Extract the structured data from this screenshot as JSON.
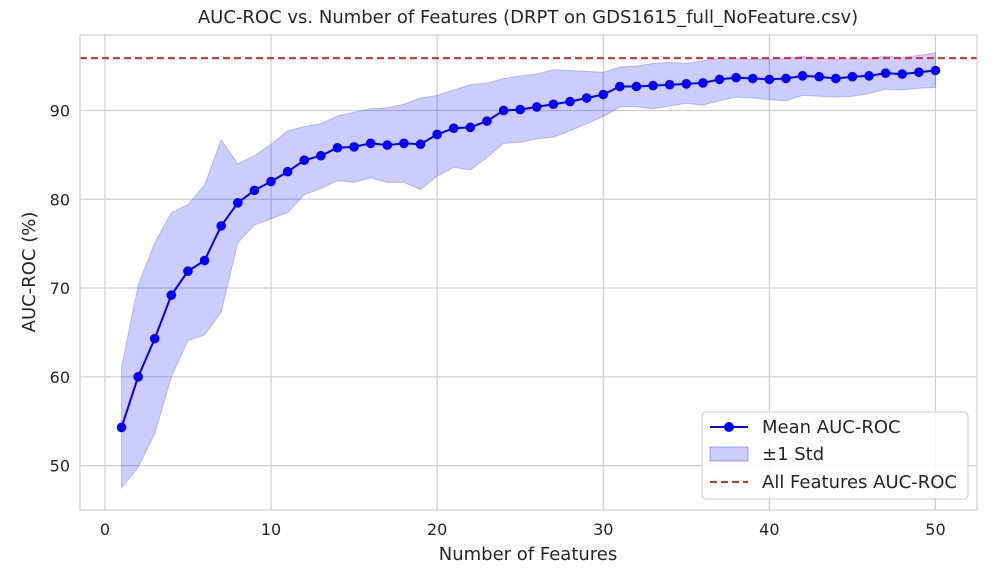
{
  "chart_data": {
    "type": "line",
    "title": "AUC-ROC vs. Number of Features (DRPT on GDS1615_full_NoFeature.csv)",
    "xlabel": "Number of Features",
    "ylabel": "AUC-ROC (%)",
    "xlim": [
      -1.5,
      52.5
    ],
    "ylim": [
      45,
      98.5
    ],
    "xticks": [
      0,
      10,
      20,
      30,
      40,
      50
    ],
    "yticks": [
      50,
      60,
      70,
      80,
      90
    ],
    "grid": true,
    "legend_position": "bottom-right",
    "colors": {
      "mean": "#0000ff",
      "band": "#0000ff",
      "reference": "#e8281f",
      "grid": "#d0d0d0"
    },
    "x": [
      1,
      2,
      3,
      4,
      5,
      6,
      7,
      8,
      9,
      10,
      11,
      12,
      13,
      14,
      15,
      16,
      17,
      18,
      19,
      20,
      21,
      22,
      23,
      24,
      25,
      26,
      27,
      28,
      29,
      30,
      31,
      32,
      33,
      34,
      35,
      36,
      37,
      38,
      39,
      40,
      41,
      42,
      43,
      44,
      45,
      46,
      47,
      48,
      49,
      50
    ],
    "series": [
      {
        "name": "Mean AUC-ROC",
        "values": [
          54.3,
          60.0,
          64.3,
          69.2,
          71.9,
          73.1,
          77.0,
          79.6,
          81.0,
          82.0,
          83.1,
          84.4,
          84.9,
          85.8,
          85.9,
          86.3,
          86.1,
          86.3,
          86.2,
          87.3,
          88.0,
          88.1,
          88.8,
          90.0,
          90.1,
          90.4,
          90.7,
          91.0,
          91.4,
          91.8,
          92.7,
          92.7,
          92.8,
          92.9,
          93.0,
          93.1,
          93.5,
          93.7,
          93.6,
          93.5,
          93.6,
          93.9,
          93.8,
          93.6,
          93.8,
          93.9,
          94.2,
          94.1,
          94.3,
          94.5
        ]
      },
      {
        "name": "±1 Std",
        "lower": [
          47.5,
          49.8,
          53.6,
          60.0,
          64.1,
          64.7,
          67.3,
          75.1,
          77.1,
          77.8,
          78.5,
          80.5,
          81.2,
          82.1,
          81.9,
          82.4,
          81.9,
          81.9,
          81.1,
          82.6,
          83.6,
          83.3,
          84.7,
          86.3,
          86.4,
          86.8,
          87.0,
          87.7,
          88.5,
          89.3,
          90.4,
          90.4,
          90.2,
          90.5,
          90.8,
          90.6,
          91.1,
          91.5,
          91.4,
          91.2,
          91.1,
          91.7,
          91.6,
          91.5,
          91.6,
          91.9,
          92.4,
          92.3,
          92.5,
          92.6
        ],
        "upper": [
          61.1,
          70.3,
          75.1,
          78.5,
          79.4,
          81.6,
          86.7,
          84.0,
          84.9,
          86.2,
          87.7,
          88.2,
          88.5,
          89.4,
          89.8,
          90.2,
          90.3,
          90.7,
          91.4,
          91.7,
          92.3,
          92.9,
          93.1,
          93.6,
          93.9,
          94.1,
          94.6,
          94.5,
          94.4,
          94.3,
          94.9,
          95.0,
          95.3,
          95.4,
          95.3,
          95.6,
          95.9,
          95.9,
          95.8,
          95.8,
          95.9,
          96.1,
          95.9,
          95.8,
          95.9,
          95.9,
          96.1,
          96.0,
          96.2,
          96.5
        ]
      },
      {
        "name": "All Features AUC-ROC",
        "constant": 95.9
      }
    ]
  }
}
